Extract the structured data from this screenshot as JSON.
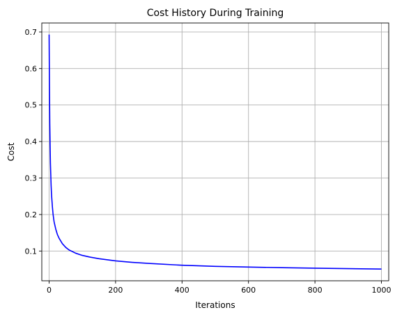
{
  "chart_data": {
    "type": "line",
    "title": "Cost History During Training",
    "xlabel": "Iterations",
    "ylabel": "Cost",
    "xlim": [
      -22,
      1022
    ],
    "ylim": [
      0.0185,
      0.7247
    ],
    "xticks": [
      0,
      200,
      400,
      600,
      800,
      1000
    ],
    "yticks": [
      0.1,
      0.2,
      0.3,
      0.4,
      0.5,
      0.6,
      0.7
    ],
    "xtick_labels": [
      "0",
      "200",
      "400",
      "600",
      "800",
      "1000"
    ],
    "ytick_labels": [
      "0.1",
      "0.2",
      "0.3",
      "0.4",
      "0.5",
      "0.6",
      "0.7"
    ],
    "grid": true,
    "series": [
      {
        "color": "#0000ff",
        "x": [
          0,
          1,
          2,
          3,
          4,
          5,
          6,
          7,
          8,
          10,
          12,
          15,
          20,
          25,
          30,
          40,
          50,
          60,
          80,
          100,
          125,
          150,
          200,
          250,
          300,
          400,
          500,
          600,
          700,
          800,
          900,
          1000
        ],
        "y": [
          0.693,
          0.56,
          0.45,
          0.39,
          0.34,
          0.31,
          0.28,
          0.26,
          0.245,
          0.22,
          0.2,
          0.18,
          0.16,
          0.145,
          0.135,
          0.12,
          0.11,
          0.103,
          0.094,
          0.088,
          0.083,
          0.079,
          0.073,
          0.069,
          0.066,
          0.061,
          0.058,
          0.056,
          0.0545,
          0.053,
          0.0517,
          0.0505
        ]
      }
    ]
  }
}
